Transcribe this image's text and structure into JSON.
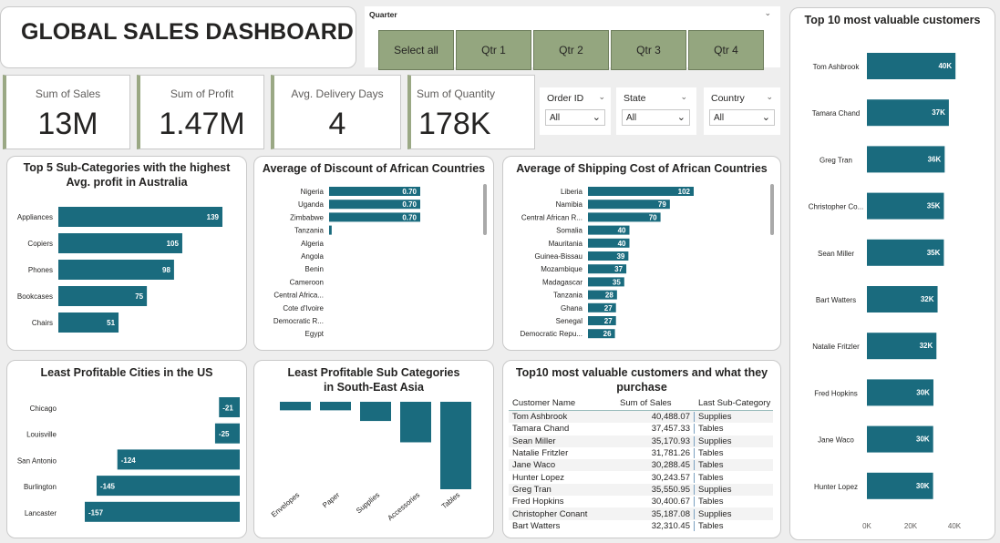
{
  "title": "GLOBAL SALES DASHBOARD",
  "quarter": {
    "label": "Quarter",
    "options": [
      "Select all",
      "Qtr 1",
      "Qtr 2",
      "Qtr 3",
      "Qtr 4"
    ]
  },
  "kpis": [
    {
      "label": "Sum of Sales",
      "value": "13M"
    },
    {
      "label": "Sum of Profit",
      "value": "1.47M"
    },
    {
      "label": "Avg. Delivery Days",
      "value": "4"
    },
    {
      "label": "Sum of Quantity",
      "value": "178K"
    }
  ],
  "slicers": [
    {
      "label": "Order ID",
      "value": "All"
    },
    {
      "label": "State",
      "value": "All"
    },
    {
      "label": "Country",
      "value": "All"
    }
  ],
  "colors": {
    "bar": "#1a6b7e",
    "accent": "#94a67f"
  },
  "chart_data": [
    {
      "id": "top5_subcat_au",
      "type": "bar",
      "orientation": "horizontal",
      "title": "Top 5 Sub-Categories with the highest Avg. profit in Australia",
      "categories": [
        "Appliances",
        "Copiers",
        "Phones",
        "Bookcases",
        "Chairs"
      ],
      "values": [
        139,
        105,
        98,
        75,
        51
      ],
      "labels": [
        "139",
        "105",
        "98",
        "75",
        "51"
      ]
    },
    {
      "id": "discount_africa",
      "type": "bar",
      "orientation": "horizontal",
      "title": "Average of Discount of African Countries",
      "categories": [
        "Nigeria",
        "Uganda",
        "Zimbabwe",
        "Tanzania",
        "Algeria",
        "Angola",
        "Benin",
        "Cameroon",
        "Central Africa...",
        "Cote d'Ivoire",
        "Democratic R...",
        "Egypt"
      ],
      "values": [
        0.7,
        0.7,
        0.7,
        0.02,
        0,
        0,
        0,
        0,
        0,
        0,
        0,
        0
      ],
      "labels": [
        "0.70",
        "0.70",
        "0.70",
        "",
        "",
        "",
        "",
        "",
        "",
        "",
        "",
        ""
      ]
    },
    {
      "id": "shipping_africa",
      "type": "bar",
      "orientation": "horizontal",
      "title": "Average of Shipping Cost of African Countries",
      "categories": [
        "Liberia",
        "Namibia",
        "Central African R...",
        "Somalia",
        "Mauritania",
        "Guinea-Bissau",
        "Mozambique",
        "Madagascar",
        "Tanzania",
        "Ghana",
        "Senegal",
        "Democratic Repu..."
      ],
      "values": [
        102,
        79,
        70,
        40,
        40,
        39,
        37,
        35,
        28,
        27,
        27,
        26
      ],
      "labels": [
        "102",
        "79",
        "70",
        "40",
        "40",
        "39",
        "37",
        "35",
        "28",
        "27",
        "27",
        "26"
      ]
    },
    {
      "id": "least_profitable_cities",
      "type": "bar",
      "orientation": "horizontal",
      "title": "Least Profitable Cities in the US",
      "categories": [
        "Chicago",
        "Louisville",
        "San Antonio",
        "Burlington",
        "Lancaster"
      ],
      "values": [
        -21,
        -25,
        -124,
        -145,
        -157
      ],
      "labels": [
        "-21",
        "-25",
        "-124",
        "-145",
        "-157"
      ]
    },
    {
      "id": "least_profitable_sea",
      "type": "bar",
      "orientation": "vertical",
      "title": "Least Profitable Sub Categories in South-East Asia",
      "categories": [
        "Envelopes",
        "Paper",
        "Supplies",
        "Accessories",
        "Tables"
      ],
      "values": [
        -8,
        -8,
        -18,
        -38,
        -82
      ]
    },
    {
      "id": "top10_customers",
      "type": "bar",
      "orientation": "horizontal",
      "title": "Top 10 most valuable customers",
      "categories": [
        "Tom Ashbrook",
        "Tamara Chand",
        "Greg Tran",
        "Christopher Co...",
        "Sean Miller",
        "Bart Watters",
        "Natalie Fritzler",
        "Fred Hopkins",
        "Jane Waco",
        "Hunter Lopez"
      ],
      "values": [
        40488.07,
        37457.33,
        35550.95,
        35187.08,
        35170.93,
        32310.45,
        31781.26,
        30400.67,
        30288.45,
        30243.57
      ],
      "labels": [
        "40K",
        "37K",
        "36K",
        "35K",
        "35K",
        "32K",
        "32K",
        "30K",
        "30K",
        "30K"
      ],
      "xticks": [
        "0K",
        "20K",
        "40K"
      ],
      "xlim": [
        0,
        40000
      ]
    }
  ],
  "table": {
    "title": "Top10 most valuable customers and what they purchase",
    "columns": [
      "Customer Name",
      "Sum of Sales",
      "Last Sub-Category"
    ],
    "rows": [
      [
        "Tom Ashbrook",
        "40,488.07",
        "Supplies"
      ],
      [
        "Tamara Chand",
        "37,457.33",
        "Tables"
      ],
      [
        "Sean Miller",
        "35,170.93",
        "Supplies"
      ],
      [
        "Natalie Fritzler",
        "31,781.26",
        "Tables"
      ],
      [
        "Jane Waco",
        "30,288.45",
        "Tables"
      ],
      [
        "Hunter Lopez",
        "30,243.57",
        "Tables"
      ],
      [
        "Greg Tran",
        "35,550.95",
        "Supplies"
      ],
      [
        "Fred Hopkins",
        "30,400.67",
        "Tables"
      ],
      [
        "Christopher Conant",
        "35,187.08",
        "Supplies"
      ],
      [
        "Bart Watters",
        "32,310.45",
        "Tables"
      ]
    ]
  }
}
